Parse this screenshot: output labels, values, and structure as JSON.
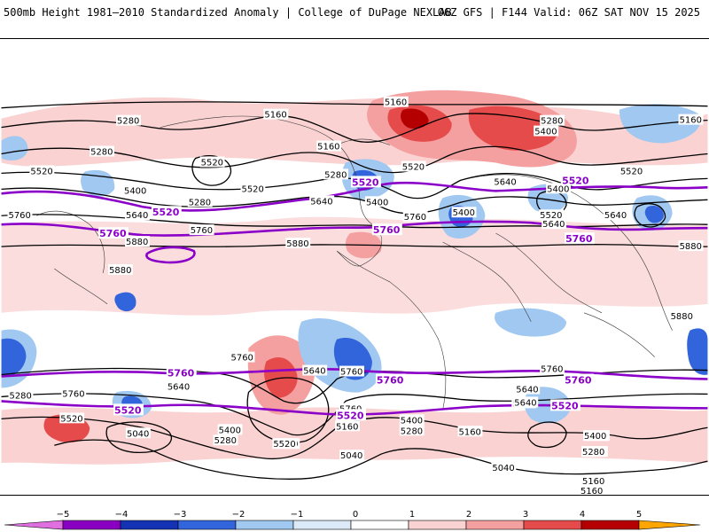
{
  "header": {
    "title": "500mb Height 1981–2010 Standardized Anomaly | College of DuPage NEXLAB",
    "run_info": "06Z GFS | F144 Valid: 06Z SAT NOV 15 2025"
  },
  "map": {
    "black_contour_labels": [
      "5160",
      "5280",
      "5160",
      "5280",
      "5160",
      "5280",
      "5400",
      "5520",
      "5400",
      "5640",
      "5520",
      "5400",
      "5280",
      "5520",
      "5640",
      "5760",
      "5880",
      "5160",
      "5280",
      "5520",
      "5400",
      "5640",
      "5760",
      "5520",
      "5400",
      "5640",
      "5520",
      "5640",
      "5760",
      "5880",
      "5880",
      "5880",
      "5880",
      "5760",
      "5640",
      "5760",
      "5760",
      "5640",
      "5520",
      "5400",
      "5280",
      "5520",
      "5040",
      "5640",
      "5760",
      "5520",
      "5400",
      "5280",
      "5160",
      "5040",
      "5160",
      "5280",
      "5400",
      "5520",
      "5640",
      "5760",
      "5040",
      "5160",
      "5160",
      "5280",
      "5400",
      "5280",
      "5520"
    ],
    "purple_contour_labels": [
      "5520",
      "5760",
      "5520",
      "5760",
      "5520",
      "5760",
      "5760",
      "5520",
      "5760",
      "5520",
      "5760",
      "5520"
    ],
    "purple_color": "#8b00c8"
  },
  "colorbar": {
    "ticks": [
      "−5",
      "−4",
      "−3",
      "−2",
      "−1",
      "0",
      "1",
      "2",
      "3",
      "4",
      "5"
    ],
    "colors": [
      "#e070e0",
      "#8a00c0",
      "#1432b4",
      "#3264dc",
      "#a0c8f0",
      "#dceaf8",
      "#ffffff",
      "#fad2d2",
      "#f5a0a0",
      "#e64b4b",
      "#b40000",
      "#ffa500"
    ]
  }
}
